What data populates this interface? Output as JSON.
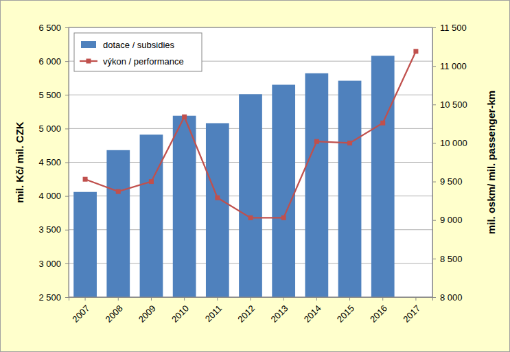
{
  "chart_data": {
    "type": "bar",
    "ylabel": "mil. Kč/ mil. CZK",
    "y2label": "mil. oskm/ mil. passenger-km",
    "categories": [
      "2007",
      "2008",
      "2009",
      "2010",
      "2011",
      "2012",
      "2013",
      "2014",
      "2015",
      "2016",
      "2017"
    ],
    "series": [
      {
        "name": "dotace / subsidies",
        "type": "bar",
        "color": "#4f81bd",
        "values": [
          4060,
          4680,
          4910,
          5190,
          5080,
          5510,
          5650,
          5820,
          5710,
          6080,
          null
        ]
      },
      {
        "name": "výkon / performance",
        "type": "line",
        "axis": "y2",
        "color": "#c0504d",
        "marker": "square",
        "values": [
          9530,
          9370,
          9500,
          10340,
          9290,
          9030,
          9030,
          10020,
          10000,
          10260,
          11190
        ]
      }
    ],
    "ylim": [
      2500,
      6500
    ],
    "yticks": [
      {
        "value": 2500,
        "label": "2 500"
      },
      {
        "value": 3000,
        "label": "3 000"
      },
      {
        "value": 3500,
        "label": "3 500"
      },
      {
        "value": 4000,
        "label": "4 000"
      },
      {
        "value": 4500,
        "label": "4 500"
      },
      {
        "value": 5000,
        "label": "5 000"
      },
      {
        "value": 5500,
        "label": "5 500"
      },
      {
        "value": 6000,
        "label": "6 000"
      },
      {
        "value": 6500,
        "label": "6 500"
      }
    ],
    "y2lim": [
      8000,
      11500
    ],
    "y2ticks": [
      {
        "value": 8000,
        "label": "8 000"
      },
      {
        "value": 8500,
        "label": "8 500"
      },
      {
        "value": 9000,
        "label": "9 000"
      },
      {
        "value": 9500,
        "label": "9 500"
      },
      {
        "value": 10000,
        "label": "10 000"
      },
      {
        "value": 10500,
        "label": "10 500"
      },
      {
        "value": 11000,
        "label": "11 000"
      },
      {
        "value": 11500,
        "label": "11 500"
      }
    ],
    "grid": true,
    "legend": "top-left"
  }
}
